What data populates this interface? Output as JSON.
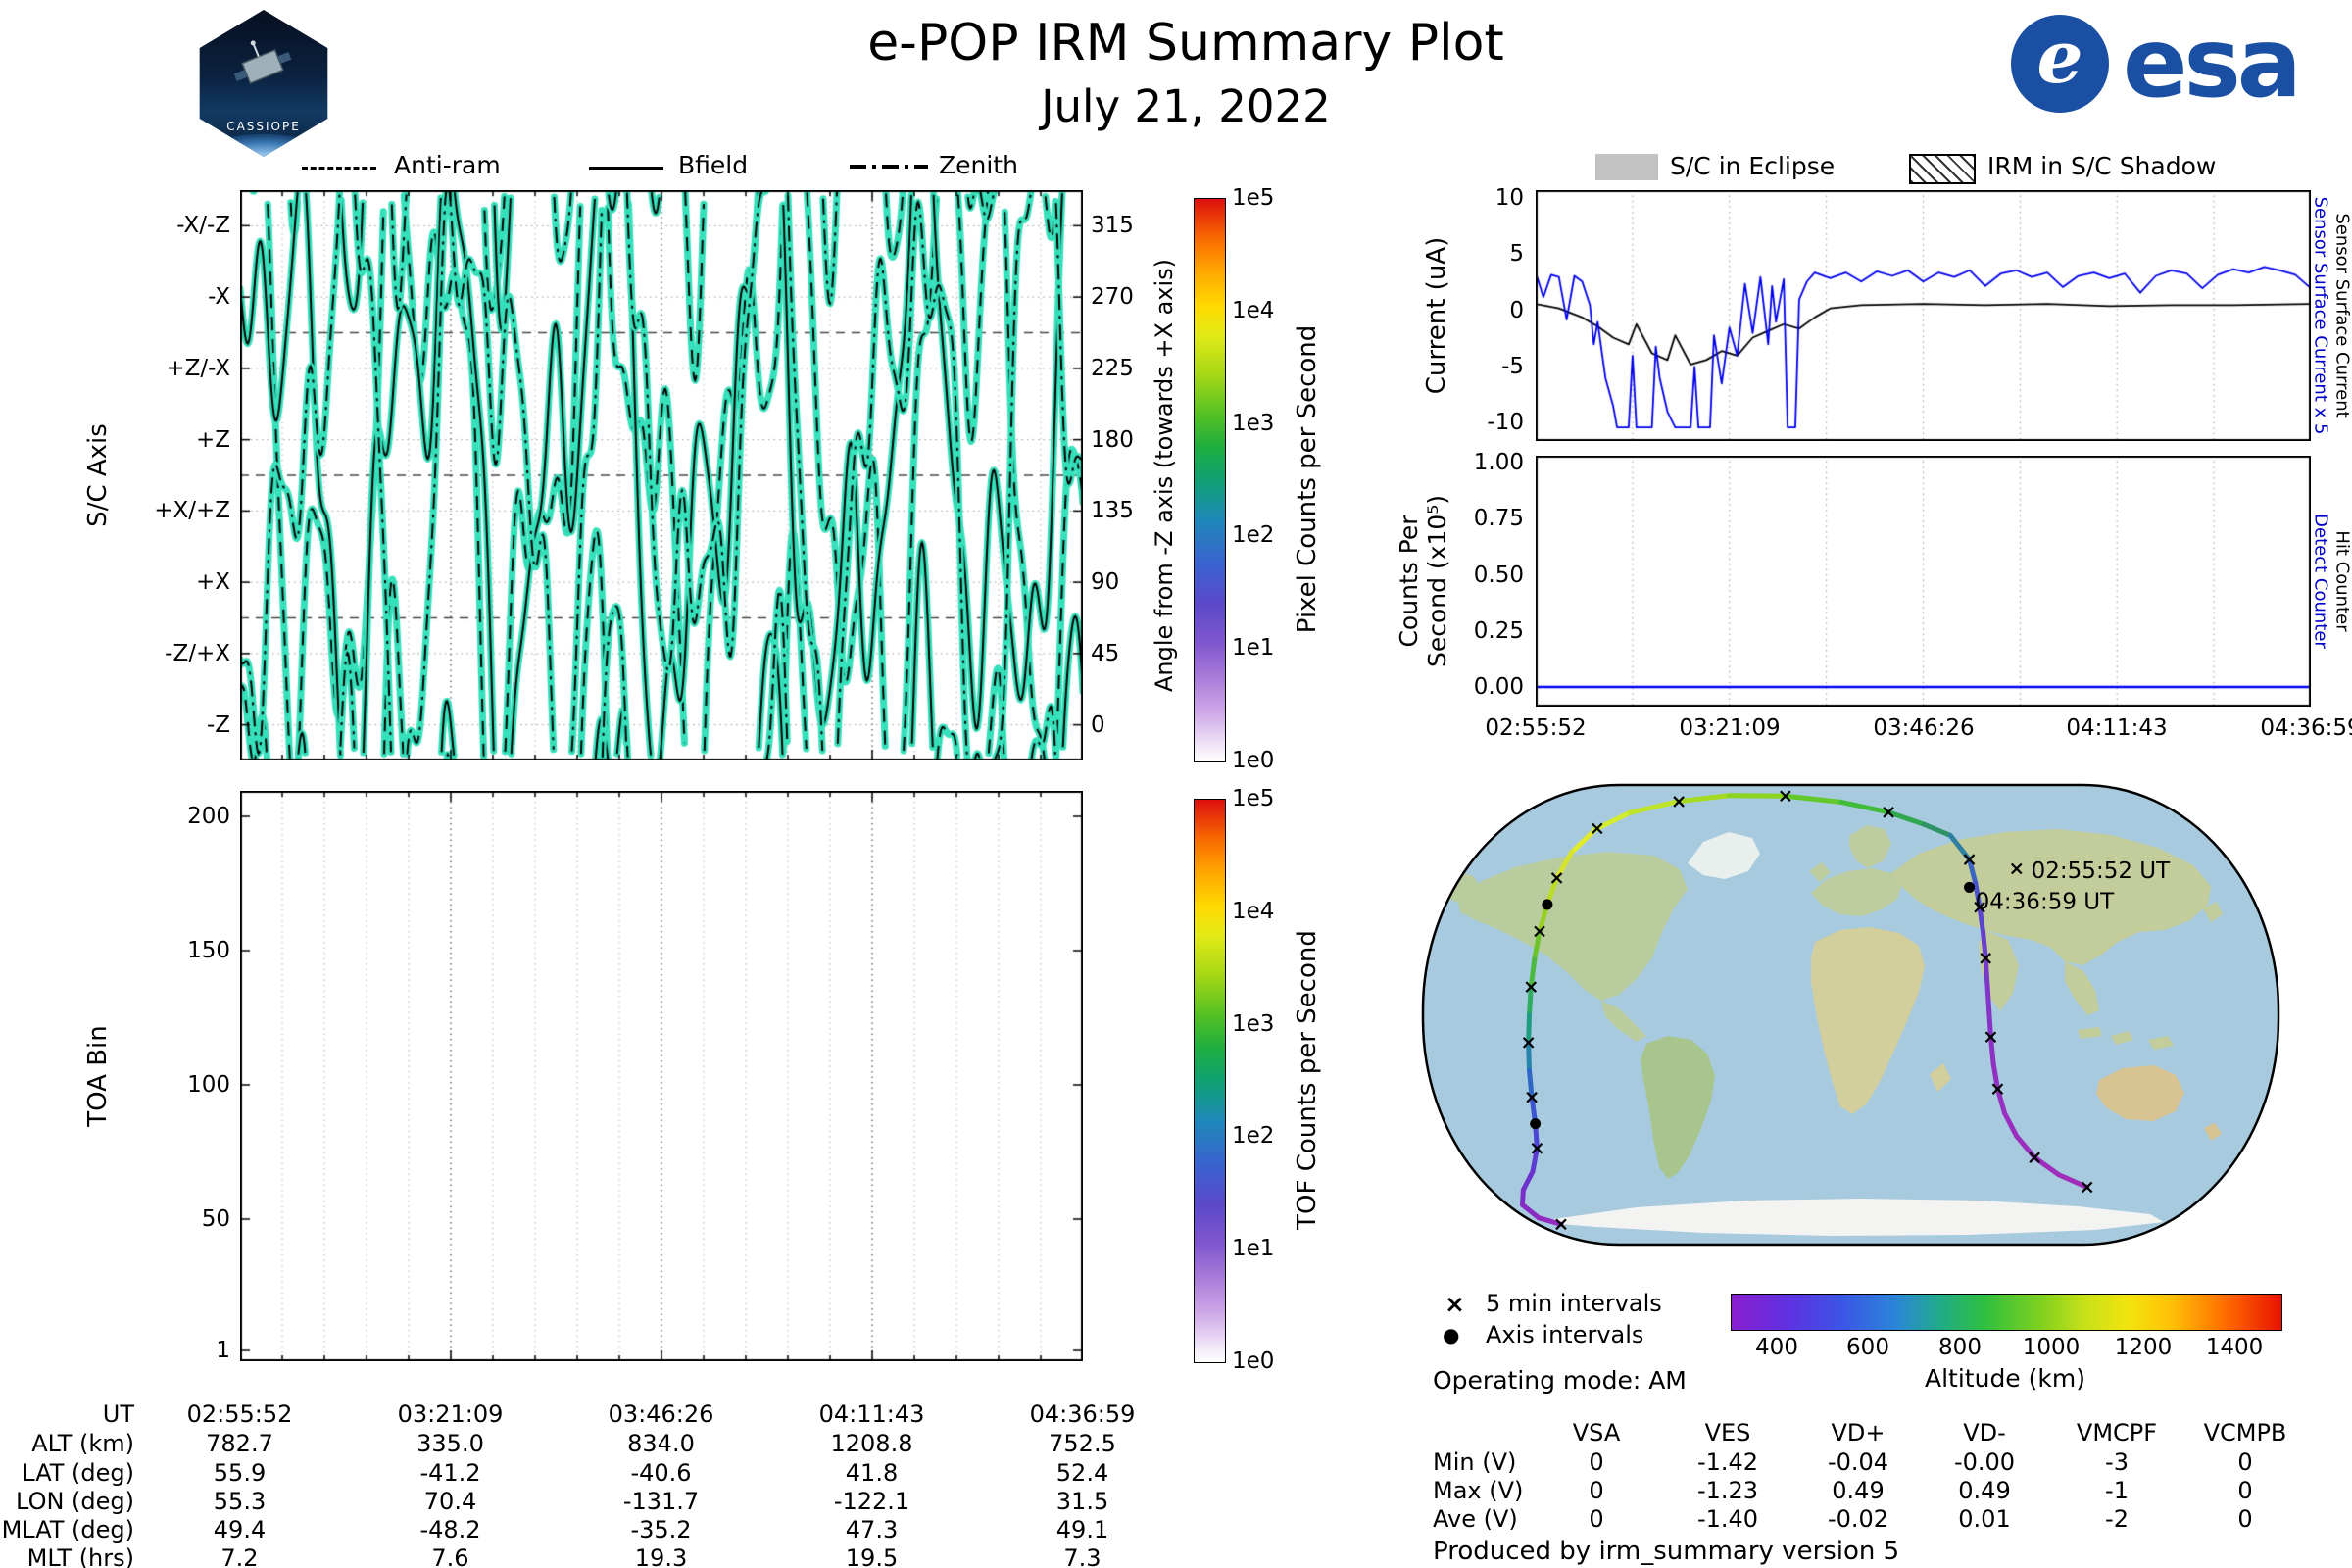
{
  "page": {
    "title": "e-POP IRM Summary Plot",
    "date": "July 21, 2022",
    "footer": "Produced by irm_summary version 5",
    "operating_mode": "Operating mode: AM"
  },
  "branding": {
    "esa_text": "esa",
    "patch_name": "CASSIOPE"
  },
  "time_ticks": [
    "02:55:52",
    "03:21:09",
    "03:46:26",
    "04:11:43",
    "04:36:59"
  ],
  "chart_data": [
    {
      "id": "sc_axis_pointing",
      "type": "line",
      "legend": [
        "Anti-ram",
        "Bfield",
        "Zenith"
      ],
      "legend_styles": [
        "dashed",
        "solid",
        "dashdot"
      ],
      "ylabel_left": "S/C Axis",
      "yticks_left": [
        "-X/-Z",
        "-X",
        "+Z/-X",
        "+Z",
        "+X/+Z",
        "+X",
        "-Z/+X",
        "-Z"
      ],
      "ylabel_right": "Angle from -Z axis (towards +X axis)",
      "yticks_right": [
        "315",
        "270",
        "225",
        "180",
        "135",
        "90",
        "45",
        "0"
      ],
      "x_range": [
        "02:55:52",
        "04:36:59"
      ],
      "y_range_deg": [
        -22.5,
        337.5
      ],
      "trace_color": "#35e0bb",
      "traces": [
        {
          "name": "Anti-ram",
          "dash": "dashed",
          "base": 180,
          "components": [
            [
              160,
              4.6,
              1.8
            ],
            [
              100,
              12.4,
              0.2
            ],
            [
              50,
              21.0,
              2.9
            ],
            [
              18,
              40,
              0.7
            ]
          ]
        },
        {
          "name": "Bfield",
          "dash": "solid",
          "base": 170,
          "components": [
            [
              150,
              5.2,
              0.3
            ],
            [
              95,
              11.0,
              2.1
            ],
            [
              45,
              23.0,
              4.0
            ],
            [
              16,
              37,
              2.2
            ]
          ]
        },
        {
          "name": "Zenith",
          "dash": "dashdot",
          "base": 175,
          "components": [
            [
              155,
              5.9,
              3.6
            ],
            [
              90,
              10.1,
              5.0
            ],
            [
              42,
              25.0,
              1.1
            ],
            [
              17,
              43,
              4.4
            ]
          ]
        }
      ],
      "colorbar": {
        "title": "Pixel Counts per Second",
        "ticks": [
          "1e5",
          "1e4",
          "1e3",
          "1e2",
          "1e1",
          "1e0"
        ]
      }
    },
    {
      "id": "toa_bins",
      "type": "heatmap",
      "ylabel": "TOA Bin",
      "yticks": [
        "200",
        "150",
        "100",
        "50",
        "1"
      ],
      "values": "blank panel (no counts above threshold)",
      "colorbar": {
        "title": "TOF Counts per Second",
        "ticks": [
          "1e5",
          "1e4",
          "1e3",
          "1e2",
          "1e1",
          "1e0"
        ]
      }
    },
    {
      "id": "sensor_current",
      "type": "line",
      "ylabel": "Current (uA)",
      "yticks": [
        "10",
        "5",
        "0",
        "-5",
        "-10"
      ],
      "ylim": [
        -11.2,
        11.2
      ],
      "legend": [
        {
          "label": "S/C in Eclipse",
          "style": "gray-fill"
        },
        {
          "label": "IRM in S/C Shadow",
          "style": "hatched"
        }
      ],
      "right_labels": [
        {
          "text": "Sensor Surface Current x 5",
          "color": "#0000cc"
        },
        {
          "text": "Sensor Surface Current",
          "color": "#000000"
        }
      ],
      "series": [
        {
          "name": "Sensor Surface Current",
          "color": "#000000",
          "points": [
            [
              0,
              0.6
            ],
            [
              0.03,
              0.2
            ],
            [
              0.06,
              -0.6
            ],
            [
              0.08,
              -1.4
            ],
            [
              0.1,
              -2.4
            ],
            [
              0.12,
              -3
            ],
            [
              0.13,
              -1.2
            ],
            [
              0.15,
              -3.8
            ],
            [
              0.17,
              -4.4
            ],
            [
              0.18,
              -2.2
            ],
            [
              0.2,
              -4.8
            ],
            [
              0.22,
              -4.4
            ],
            [
              0.24,
              -3.6
            ],
            [
              0.26,
              -4
            ],
            [
              0.28,
              -2.4
            ],
            [
              0.3,
              -1.8
            ],
            [
              0.32,
              -1.2
            ],
            [
              0.34,
              -1.6
            ],
            [
              0.36,
              -0.6
            ],
            [
              0.38,
              0.2
            ],
            [
              0.42,
              0.5
            ],
            [
              0.5,
              0.6
            ],
            [
              0.58,
              0.5
            ],
            [
              0.66,
              0.6
            ],
            [
              0.74,
              0.4
            ],
            [
              0.82,
              0.5
            ],
            [
              0.9,
              0.5
            ],
            [
              1,
              0.6
            ]
          ]
        },
        {
          "name": "Sensor Surface Current x 5",
          "color": "#0000ee",
          "points": [
            [
              0,
              3.4
            ],
            [
              0.01,
              1.2
            ],
            [
              0.02,
              3.2
            ],
            [
              0.03,
              3
            ],
            [
              0.04,
              -0.8
            ],
            [
              0.05,
              3.1
            ],
            [
              0.06,
              2.6
            ],
            [
              0.07,
              0.5
            ],
            [
              0.075,
              -3
            ],
            [
              0.08,
              -1
            ],
            [
              0.09,
              -6
            ],
            [
              0.1,
              -8.5
            ],
            [
              0.105,
              -10.4
            ],
            [
              0.12,
              -10.4
            ],
            [
              0.125,
              -4
            ],
            [
              0.13,
              -10.4
            ],
            [
              0.15,
              -10.4
            ],
            [
              0.155,
              -3.2
            ],
            [
              0.16,
              -6
            ],
            [
              0.17,
              -9
            ],
            [
              0.18,
              -10.4
            ],
            [
              0.2,
              -10.4
            ],
            [
              0.205,
              -5
            ],
            [
              0.21,
              -10.4
            ],
            [
              0.225,
              -10.4
            ],
            [
              0.23,
              -2.2
            ],
            [
              0.24,
              -6.5
            ],
            [
              0.25,
              -1.5
            ],
            [
              0.26,
              -4
            ],
            [
              0.27,
              2.4
            ],
            [
              0.28,
              -2
            ],
            [
              0.29,
              3
            ],
            [
              0.3,
              -3
            ],
            [
              0.305,
              2.2
            ],
            [
              0.31,
              -1
            ],
            [
              0.32,
              2.8
            ],
            [
              0.325,
              -10.4
            ],
            [
              0.335,
              -10.4
            ],
            [
              0.34,
              1
            ],
            [
              0.35,
              2.6
            ],
            [
              0.36,
              3.4
            ],
            [
              0.38,
              2.9
            ],
            [
              0.4,
              3.4
            ],
            [
              0.42,
              2.6
            ],
            [
              0.44,
              3.5
            ],
            [
              0.46,
              3.1
            ],
            [
              0.48,
              3.6
            ],
            [
              0.5,
              2.6
            ],
            [
              0.52,
              3.4
            ],
            [
              0.54,
              3
            ],
            [
              0.56,
              3.6
            ],
            [
              0.58,
              2.2
            ],
            [
              0.6,
              3.3
            ],
            [
              0.62,
              3.6
            ],
            [
              0.64,
              3
            ],
            [
              0.66,
              3.4
            ],
            [
              0.68,
              2.1
            ],
            [
              0.7,
              3.1
            ],
            [
              0.72,
              3.4
            ],
            [
              0.74,
              2.9
            ],
            [
              0.76,
              3.3
            ],
            [
              0.78,
              1.6
            ],
            [
              0.8,
              3.1
            ],
            [
              0.82,
              3.6
            ],
            [
              0.84,
              3.3
            ],
            [
              0.86,
              2
            ],
            [
              0.88,
              3.2
            ],
            [
              0.9,
              3.7
            ],
            [
              0.92,
              3.4
            ],
            [
              0.94,
              3.9
            ],
            [
              0.96,
              3.6
            ],
            [
              0.98,
              3.2
            ],
            [
              1,
              2
            ]
          ]
        }
      ]
    },
    {
      "id": "detector_counts",
      "type": "line",
      "ylabel_line1": "Counts Per",
      "ylabel_line2": "Second (x10⁵)",
      "yticks": [
        "1.00",
        "0.75",
        "0.50",
        "0.25",
        "0.00"
      ],
      "ylim": [
        0,
        1
      ],
      "right_labels": [
        {
          "text": "Detect Counter",
          "color": "#0000cc"
        },
        {
          "text": "Hit Counter",
          "color": "#000000"
        }
      ],
      "series": [
        {
          "name": "Hit Counter",
          "color": "#000000",
          "constant": 0
        },
        {
          "name": "Detect Counter",
          "color": "#0000ee",
          "constant": 0
        }
      ]
    },
    {
      "id": "ground_track",
      "type": "map",
      "legend": [
        {
          "marker": "×",
          "label": "5 min intervals"
        },
        {
          "marker": "●",
          "label": "Axis intervals"
        }
      ],
      "colorbar": {
        "title": "Altitude (km)",
        "ticks": [
          "400",
          "600",
          "800",
          "1000",
          "1200",
          "1400"
        ]
      },
      "tracks": [
        {
          "points": [
            [
              0.175,
              0.15,
              "#e6e832"
            ],
            [
              0.203,
              0.1,
              "#e2ea2e"
            ],
            [
              0.243,
              0.064,
              "#d4ec30"
            ],
            [
              0.298,
              0.04,
              "#bfe42a"
            ],
            [
              0.358,
              0.027,
              "#a6da22"
            ],
            [
              0.424,
              0.028,
              "#8cd41e"
            ],
            [
              0.489,
              0.041,
              "#63c82a"
            ],
            [
              0.544,
              0.063,
              "#41bc3a"
            ],
            [
              0.585,
              0.089,
              "#31a84e"
            ],
            [
              0.616,
              0.113,
              "#2f9464"
            ]
          ]
        },
        {
          "points": [
            [
              0.175,
              0.15,
              "#e6e832"
            ],
            [
              0.158,
              0.205,
              "#d6e42e"
            ],
            [
              0.147,
              0.262,
              "#bbdc26"
            ],
            [
              0.138,
              0.32,
              "#97d020"
            ],
            [
              0.132,
              0.38,
              "#6fc42a"
            ],
            [
              0.128,
              0.44,
              "#4bb83e"
            ],
            [
              0.126,
              0.5,
              "#30ac5e"
            ],
            [
              0.125,
              0.56,
              "#209c82"
            ],
            [
              0.126,
              0.62,
              "#2584aa"
            ],
            [
              0.129,
              0.678,
              "#2f68c4"
            ],
            [
              0.133,
              0.735,
              "#3c54d0"
            ],
            [
              0.135,
              0.788,
              "#4b46d4"
            ],
            [
              0.13,
              0.838,
              "#5b3cd0"
            ],
            [
              0.119,
              0.878,
              "#6b34cc"
            ],
            [
              0.118,
              0.91,
              "#7930c8"
            ],
            [
              0.137,
              0.938,
              "#892cc4"
            ],
            [
              0.163,
              0.952,
              "#952ac0"
            ]
          ]
        },
        {
          "points": [
            [
              0.616,
              0.113,
              "#2f9464"
            ],
            [
              0.638,
              0.165,
              "#2f7fa0"
            ],
            [
              0.645,
              0.215,
              "#3a66c0"
            ],
            [
              0.65,
              0.268,
              "#4a52cc"
            ],
            [
              0.654,
              0.322,
              "#5a46cc"
            ],
            [
              0.657,
              0.378,
              "#693ecc"
            ],
            [
              0.659,
              0.435,
              "#753ac8"
            ],
            [
              0.661,
              0.492,
              "#8036c8"
            ],
            [
              0.663,
              0.548,
              "#8732c6"
            ],
            [
              0.666,
              0.605,
              "#8d30c4"
            ],
            [
              0.671,
              0.66,
              "#9230c2"
            ],
            [
              0.679,
              0.712,
              "#9530c0"
            ],
            [
              0.693,
              0.762,
              "#992ec0"
            ],
            [
              0.714,
              0.808,
              "#9b2ebe"
            ],
            [
              0.742,
              0.845,
              "#9e2cbc"
            ],
            [
              0.775,
              0.872,
              "#a02cba"
            ]
          ]
        }
      ],
      "markers_x": [
        [
          0.205,
          0.098
        ],
        [
          0.3,
          0.04
        ],
        [
          0.424,
          0.028
        ],
        [
          0.544,
          0.063
        ],
        [
          0.638,
          0.165
        ],
        [
          0.65,
          0.268
        ],
        [
          0.657,
          0.378
        ],
        [
          0.663,
          0.548
        ],
        [
          0.671,
          0.66
        ],
        [
          0.714,
          0.808
        ],
        [
          0.775,
          0.872
        ],
        [
          0.158,
          0.205
        ],
        [
          0.138,
          0.32
        ],
        [
          0.128,
          0.44
        ],
        [
          0.125,
          0.56
        ],
        [
          0.129,
          0.678
        ],
        [
          0.135,
          0.788
        ],
        [
          0.163,
          0.952
        ],
        [
          0.693,
          0.185
        ]
      ],
      "markers_dot": [
        [
          0.638,
          0.225
        ],
        [
          0.147,
          0.262
        ],
        [
          0.133,
          0.735
        ]
      ],
      "annotations": [
        {
          "text": "02:55:52 UT",
          "x": 0.71,
          "y": 0.205
        },
        {
          "text": "04:36:59 UT",
          "x": 0.645,
          "y": 0.272
        }
      ]
    }
  ],
  "ephemeris": {
    "row_labels": [
      "UT",
      "ALT (km)",
      "LAT (deg)",
      "LON (deg)",
      "MLAT (deg)",
      "MLT (hrs)"
    ],
    "columns": [
      [
        "02:55:52",
        "782.7",
        "55.9",
        "55.3",
        "49.4",
        "7.2"
      ],
      [
        "03:21:09",
        "335.0",
        "-41.2",
        "70.4",
        "-48.2",
        "7.6"
      ],
      [
        "03:46:26",
        "834.0",
        "-40.6",
        "-131.7",
        "-35.2",
        "19.3"
      ],
      [
        "04:11:43",
        "1208.8",
        "41.8",
        "-122.1",
        "47.3",
        "19.5"
      ],
      [
        "04:36:59",
        "752.5",
        "52.4",
        "31.5",
        "49.1",
        "7.3"
      ]
    ]
  },
  "voltage_table": {
    "headers": [
      "VSA",
      "VES",
      "VD+",
      "VD-",
      "VMCPF",
      "VCMPB"
    ],
    "row_labels": [
      "Min (V)",
      "Max (V)",
      "Ave (V)"
    ],
    "rows": [
      [
        "0",
        "-1.42",
        "-0.04",
        "-0.00",
        "-3",
        "0"
      ],
      [
        "0",
        "-1.23",
        "0.49",
        "0.49",
        "-1",
        "0"
      ],
      [
        "0",
        "-1.40",
        "-0.02",
        "0.01",
        "-2",
        "0"
      ]
    ]
  }
}
